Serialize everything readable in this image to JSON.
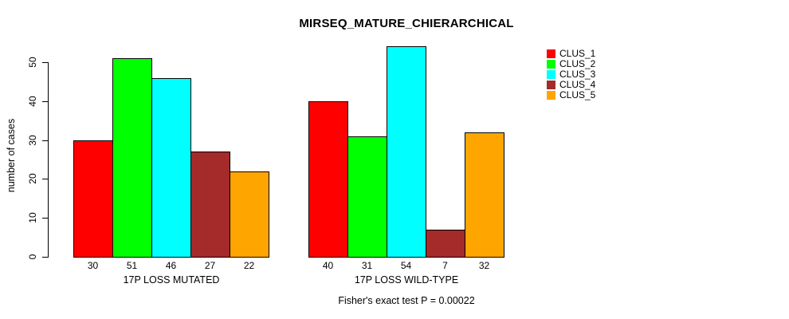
{
  "chart_data": {
    "type": "bar",
    "title": "MIRSEQ_MATURE_CHIERARCHICAL",
    "ylabel": "number of cases",
    "ylim": [
      0,
      50
    ],
    "yticks": [
      0,
      10,
      20,
      30,
      40,
      50
    ],
    "grid": false,
    "legend_position": "right",
    "categories": [
      "17P LOSS MUTATED",
      "17P LOSS WILD-TYPE"
    ],
    "groups": [
      {
        "label": "17P LOSS MUTATED",
        "values": [
          30,
          51,
          46,
          27,
          22
        ]
      },
      {
        "label": "17P LOSS WILD-TYPE",
        "values": [
          40,
          31,
          54,
          7,
          32
        ]
      }
    ],
    "legend": [
      {
        "name": "CLUS_1",
        "color": "#ff0000"
      },
      {
        "name": "CLUS_2",
        "color": "#00ff00"
      },
      {
        "name": "CLUS_3",
        "color": "#00ffff"
      },
      {
        "name": "CLUS_4",
        "color": "#a52a2a"
      },
      {
        "name": "CLUS_5",
        "color": "#ffa500"
      }
    ],
    "footnote": "Fisher's exact test P = 0.00022"
  }
}
